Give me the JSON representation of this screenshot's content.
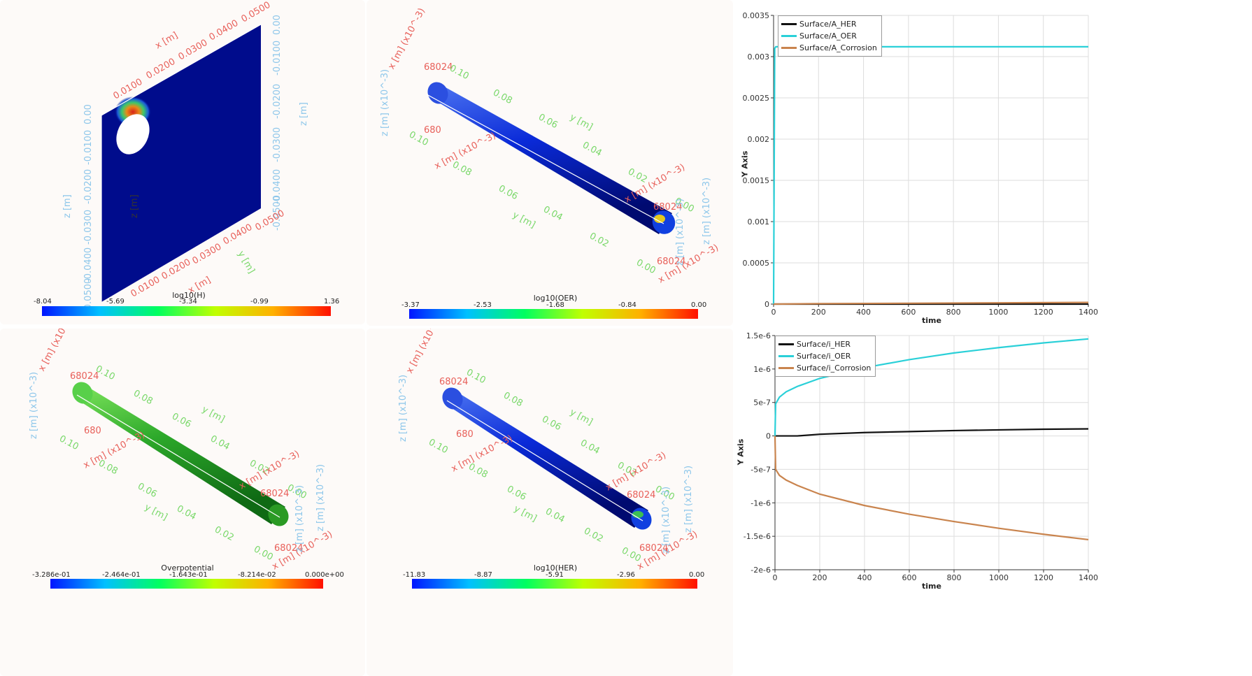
{
  "views": {
    "hydrogen": {
      "title": "log10(H)",
      "ticks": [
        "-8.04",
        "-5.69",
        "-3.34",
        "-0.99",
        "1.36"
      ],
      "axis_labels": {
        "x_top": "x [m]",
        "z_right": "z [m]",
        "z_left1": "z [m]",
        "z_left2": "z [m]",
        "x_bottom": "x [m]",
        "y_bottom": "y [m]"
      },
      "x_ticks_top": [
        "0.0100",
        "0.0200",
        "0.0300",
        "0.0400",
        "0.0500"
      ],
      "z_ticks_right": [
        "0.00",
        "-0.0100",
        "-0.0200",
        "-0.0300",
        "-0.0400",
        "-0.0500"
      ],
      "z_ticks_left": [
        "0.00",
        "-0.0100",
        "-0.0200",
        "-0.0300",
        "-0.0400",
        "-0.0500"
      ],
      "x_ticks_bottom": [
        "0.0100",
        "0.0200",
        "0.0300",
        "0.0400",
        "0.0500"
      ]
    },
    "oer": {
      "title": "log10(OER)",
      "ticks": [
        "-3.37",
        "-2.53",
        "-1.68",
        "-0.84",
        "0.00"
      ],
      "axis_labels": {
        "x": "x [m] (x10^-3)",
        "z": "z [m] (x10^-3)",
        "y": "y [m]",
        "y2": "y [m]",
        "x2": "x [m] (x10^-3)",
        "z2": "z [m] (x10^-3)"
      },
      "y_ticks": [
        "0.10",
        "0.08",
        "0.06",
        "0.04",
        "0.02",
        "0.00"
      ],
      "y_ticks_lower": [
        "0.10",
        "0.08",
        "0.06",
        "0.04",
        "0.02",
        "0.00"
      ],
      "end_ticks": [
        "68024",
        "680"
      ]
    },
    "overpotential": {
      "title": "Overpotential",
      "ticks": [
        "-3.286e-01",
        "-2.464e-01",
        "-1.643e-01",
        "-8.214e-02",
        "0.000e+00"
      ],
      "axis_labels": {
        "x": "x [m] (x10^-3)",
        "z": "z [m] (x10^-3)",
        "y": "y [m]",
        "y2": "y [m]",
        "x2": "x [m] (x10^-3)",
        "z2": "z [m] (x10^-3)"
      },
      "y_ticks": [
        "0.10",
        "0.08",
        "0.06",
        "0.04",
        "0.02",
        "0.00"
      ],
      "y_ticks_lower": [
        "0.10",
        "0.08",
        "0.06",
        "0.04",
        "0.02",
        "0.00"
      ],
      "end_ticks": [
        "68024",
        "680"
      ]
    },
    "her": {
      "title": "log10(HER)",
      "ticks": [
        "-11.83",
        "-8.87",
        "-5.91",
        "-2.96",
        "0.00"
      ],
      "axis_labels": {
        "x": "x [m] (x10^-3)",
        "z": "z [m] (x10^-3)",
        "y": "y [m]",
        "y2": "y [m]",
        "x2": "x [m] (x10^-3)",
        "z2": "z [m] (x10^-3)"
      },
      "y_ticks": [
        "0.10",
        "0.08",
        "0.06",
        "0.04",
        "0.02",
        "0.00"
      ],
      "y_ticks_lower": [
        "0.10",
        "0.08",
        "0.06",
        "0.04",
        "0.02",
        "0.00"
      ],
      "end_ticks": [
        "68024",
        "680"
      ]
    }
  },
  "chart_data": [
    {
      "type": "line",
      "title": "",
      "xlabel": "time",
      "ylabel": "Y Axis",
      "xlim": [
        0,
        1400
      ],
      "ylim": [
        0,
        0.0035
      ],
      "x_ticks": [
        "0",
        "200",
        "400",
        "600",
        "800",
        "1000",
        "1200",
        "1400"
      ],
      "y_ticks": [
        "0",
        "0.0005",
        "0.001",
        "0.0015",
        "0.002",
        "0.0025",
        "0.003",
        "0.0035"
      ],
      "legend": "top-left",
      "series": [
        {
          "name": "Surface/A_HER",
          "color": "#111111",
          "x": [
            0,
            5,
            200,
            600,
            1000,
            1400
          ],
          "values": [
            0,
            0,
            0,
            0,
            0,
            0
          ]
        },
        {
          "name": "Surface/A_OER",
          "color": "#2ad0d8",
          "x": [
            0,
            5,
            10,
            200,
            600,
            1000,
            1400
          ],
          "values": [
            0,
            0.0031,
            0.00312,
            0.00312,
            0.00312,
            0.00312,
            0.00312
          ]
        },
        {
          "name": "Surface/A_Corrosion",
          "color": "#c9844e",
          "x": [
            0,
            200,
            600,
            1000,
            1400
          ],
          "values": [
            0,
            5e-06,
            1e-05,
            1.5e-05,
            2e-05
          ]
        }
      ]
    },
    {
      "type": "line",
      "title": "",
      "xlabel": "time",
      "ylabel": "Y Axis",
      "xlim": [
        0,
        1400
      ],
      "ylim": [
        -2e-06,
        1.5e-06
      ],
      "x_ticks": [
        "0",
        "200",
        "400",
        "600",
        "800",
        "1000",
        "1200",
        "1400"
      ],
      "y_ticks": [
        "-2e-6",
        "-1.5e-6",
        "-1e-6",
        "-5e-7",
        "0",
        "5e-7",
        "1e-6",
        "1.5e-6"
      ],
      "legend": "top-left",
      "series": [
        {
          "name": "Surface/i_HER",
          "color": "#111111",
          "x": [
            0,
            50,
            100,
            200,
            400,
            600,
            800,
            1000,
            1200,
            1400
          ],
          "values": [
            0,
            0,
            0,
            2.5e-08,
            5e-08,
            6.5e-08,
            8e-08,
            9e-08,
            1e-07,
            1.05e-07
          ]
        },
        {
          "name": "Surface/i_OER",
          "color": "#2ad0d8",
          "x": [
            0,
            3,
            20,
            50,
            100,
            200,
            400,
            600,
            800,
            1000,
            1200,
            1400
          ],
          "values": [
            0,
            4.8e-07,
            5.8e-07,
            6.6e-07,
            7.4e-07,
            8.6e-07,
            1.02e-06,
            1.14e-06,
            1.24e-06,
            1.32e-06,
            1.39e-06,
            1.45e-06
          ]
        },
        {
          "name": "Surface/i_Corrosion",
          "color": "#c9844e",
          "x": [
            0,
            3,
            20,
            50,
            100,
            200,
            400,
            600,
            800,
            1000,
            1200,
            1400
          ],
          "values": [
            0,
            -5e-07,
            -5.9e-07,
            -6.6e-07,
            -7.4e-07,
            -8.7e-07,
            -1.04e-06,
            -1.17e-06,
            -1.28e-06,
            -1.38e-06,
            -1.47e-06,
            -1.55e-06
          ]
        }
      ]
    }
  ]
}
